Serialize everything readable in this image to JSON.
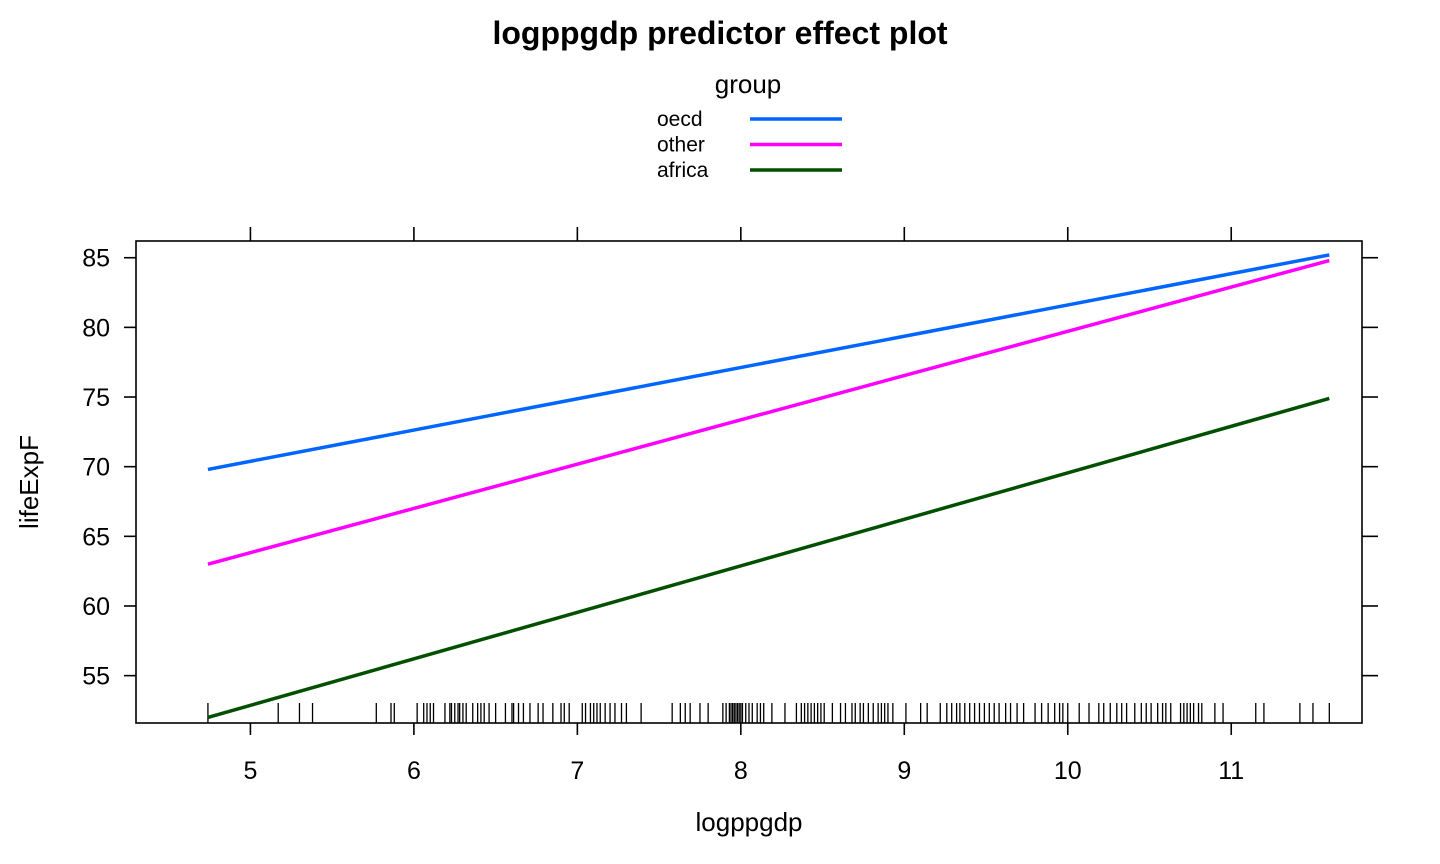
{
  "chart_data": {
    "type": "line",
    "title": "logppgdp predictor effect plot",
    "xlabel": "logppgdp",
    "ylabel": "lifeExpF",
    "xlim": [
      4.3,
      11.8
    ],
    "ylim": [
      51.6,
      86.2
    ],
    "x_ticks": [
      5,
      6,
      7,
      8,
      9,
      10,
      11
    ],
    "y_ticks": [
      55,
      60,
      65,
      70,
      75,
      80,
      85
    ],
    "legend": {
      "title": "group",
      "placement": "top-center"
    },
    "grid": false,
    "series": [
      {
        "name": "oecd",
        "color": "#0066ff",
        "x": [
          4.74,
          11.6
        ],
        "values": [
          69.8,
          85.2
        ]
      },
      {
        "name": "other",
        "color": "#ff00ff",
        "x": [
          4.74,
          11.6
        ],
        "values": [
          63.0,
          84.8
        ]
      },
      {
        "name": "africa",
        "color": "#005000",
        "x": [
          4.74,
          11.6
        ],
        "values": [
          52.0,
          74.9
        ]
      }
    ],
    "rug_x": [
      4.74,
      5.17,
      5.3,
      5.38,
      5.77,
      5.86,
      5.88,
      6.02,
      6.06,
      6.08,
      6.1,
      6.12,
      6.19,
      6.22,
      6.23,
      6.25,
      6.27,
      6.28,
      6.3,
      6.32,
      6.36,
      6.39,
      6.41,
      6.43,
      6.46,
      6.5,
      6.56,
      6.6,
      6.61,
      6.64,
      6.67,
      6.71,
      6.76,
      6.79,
      6.85,
      6.9,
      6.92,
      6.95,
      7.03,
      7.05,
      7.08,
      7.1,
      7.12,
      7.14,
      7.17,
      7.2,
      7.23,
      7.27,
      7.3,
      7.39,
      7.58,
      7.63,
      7.66,
      7.69,
      7.75,
      7.8,
      7.89,
      7.91,
      7.93,
      7.94,
      7.95,
      7.96,
      7.97,
      7.98,
      7.99,
      8.0,
      8.01,
      8.03,
      8.05,
      8.07,
      8.1,
      8.12,
      8.14,
      8.19,
      8.27,
      8.34,
      8.37,
      8.39,
      8.41,
      8.43,
      8.45,
      8.47,
      8.49,
      8.51,
      8.56,
      8.61,
      8.64,
      8.68,
      8.7,
      8.73,
      8.75,
      8.78,
      8.81,
      8.84,
      8.86,
      8.88,
      8.9,
      8.93,
      9.01,
      9.1,
      9.14,
      9.22,
      9.26,
      9.29,
      9.32,
      9.34,
      9.37,
      9.4,
      9.43,
      9.46,
      9.49,
      9.52,
      9.55,
      9.58,
      9.62,
      9.65,
      9.69,
      9.73,
      9.8,
      9.84,
      9.88,
      9.92,
      9.95,
      9.97,
      10.0,
      10.07,
      10.13,
      10.19,
      10.22,
      10.26,
      10.3,
      10.33,
      10.36,
      10.41,
      10.45,
      10.48,
      10.51,
      10.55,
      10.58,
      10.6,
      10.63,
      10.69,
      10.71,
      10.73,
      10.75,
      10.77,
      10.8,
      10.82,
      10.9,
      10.95,
      11.15,
      11.2,
      11.42,
      11.5,
      11.6
    ]
  }
}
